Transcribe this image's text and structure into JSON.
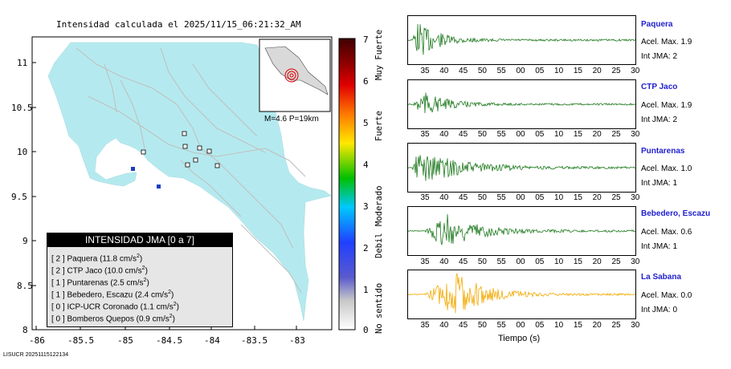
{
  "title": "Intensidad calculada el 2025/11/15_06:21:32_AM",
  "map": {
    "x_ticks": [
      "-86",
      "-85.5",
      "-85",
      "-84.5",
      "-84",
      "-83.5",
      "-83"
    ],
    "y_ticks": [
      "11",
      "10.5",
      "10",
      "9.5",
      "9",
      "8.5",
      "8"
    ],
    "inset_label": "M=4.6 P=19km",
    "colors": {
      "land": "#b4eaef",
      "roads": "#bdbdbd",
      "frame": "#000000"
    }
  },
  "legend": {
    "header": "INTENSIDAD JMA [0 a 7]",
    "rows": [
      {
        "jma": "[ 2 ]",
        "name": "Paquera",
        "acc": "(11.8 cm/s",
        "sup": "2",
        "end": ")"
      },
      {
        "jma": "[ 2 ]",
        "name": "CTP Jaco",
        "acc": "(10.0 cm/s",
        "sup": "2",
        "end": ")"
      },
      {
        "jma": "[ 1 ]",
        "name": "Puntarenas",
        "acc": "(2.5 cm/s",
        "sup": "2",
        "end": ")"
      },
      {
        "jma": "[ 1 ]",
        "name": "Bebedero, Escazu",
        "acc": "(2.4 cm/s",
        "sup": "2",
        "end": ")"
      },
      {
        "jma": "[ 0 ]",
        "name": "ICP-UCR Coronado",
        "acc": "(1.1 cm/s",
        "sup": "2",
        "end": ")"
      },
      {
        "jma": "[ 0 ]",
        "name": "Bomberos Quepos",
        "acc": "(0.9 cm/s",
        "sup": "2",
        "end": ")"
      }
    ]
  },
  "colorbar": {
    "ticks": [
      "7",
      "6",
      "5",
      "4",
      "3",
      "2",
      "1",
      "0"
    ],
    "labels": [
      "Muy Fuerte",
      "Fuerte",
      "Moderado",
      "Debil",
      "No sentido"
    ]
  },
  "stations": [
    {
      "name": "Paquera",
      "acc": "Acel. Max. 1.9",
      "jma": "Int JMA: 2",
      "color": "#1f7a1f"
    },
    {
      "name": "CTP Jaco",
      "acc": "Acel. Max. 1.9",
      "jma": "Int JMA: 2",
      "color": "#1f7a1f"
    },
    {
      "name": "Puntarenas",
      "acc": "Acel. Max. 1.0",
      "jma": "Int JMA: 1",
      "color": "#1f7a1f"
    },
    {
      "name": "Bebedero, Escazu",
      "acc": "Acel. Max. 0.6",
      "jma": "Int JMA: 1",
      "color": "#1f7a1f"
    },
    {
      "name": "La Sabana",
      "acc": "Acel. Max. 0.0",
      "jma": "Int JMA: 0",
      "color": "#f2a900"
    }
  ],
  "time_ticks": [
    "35",
    "40",
    "45",
    "50",
    "55",
    "00",
    "05",
    "10",
    "15",
    "20",
    "25",
    "30"
  ],
  "time_label": "Tiempo (s)",
  "footer": "LISUCR 20251115122134"
}
